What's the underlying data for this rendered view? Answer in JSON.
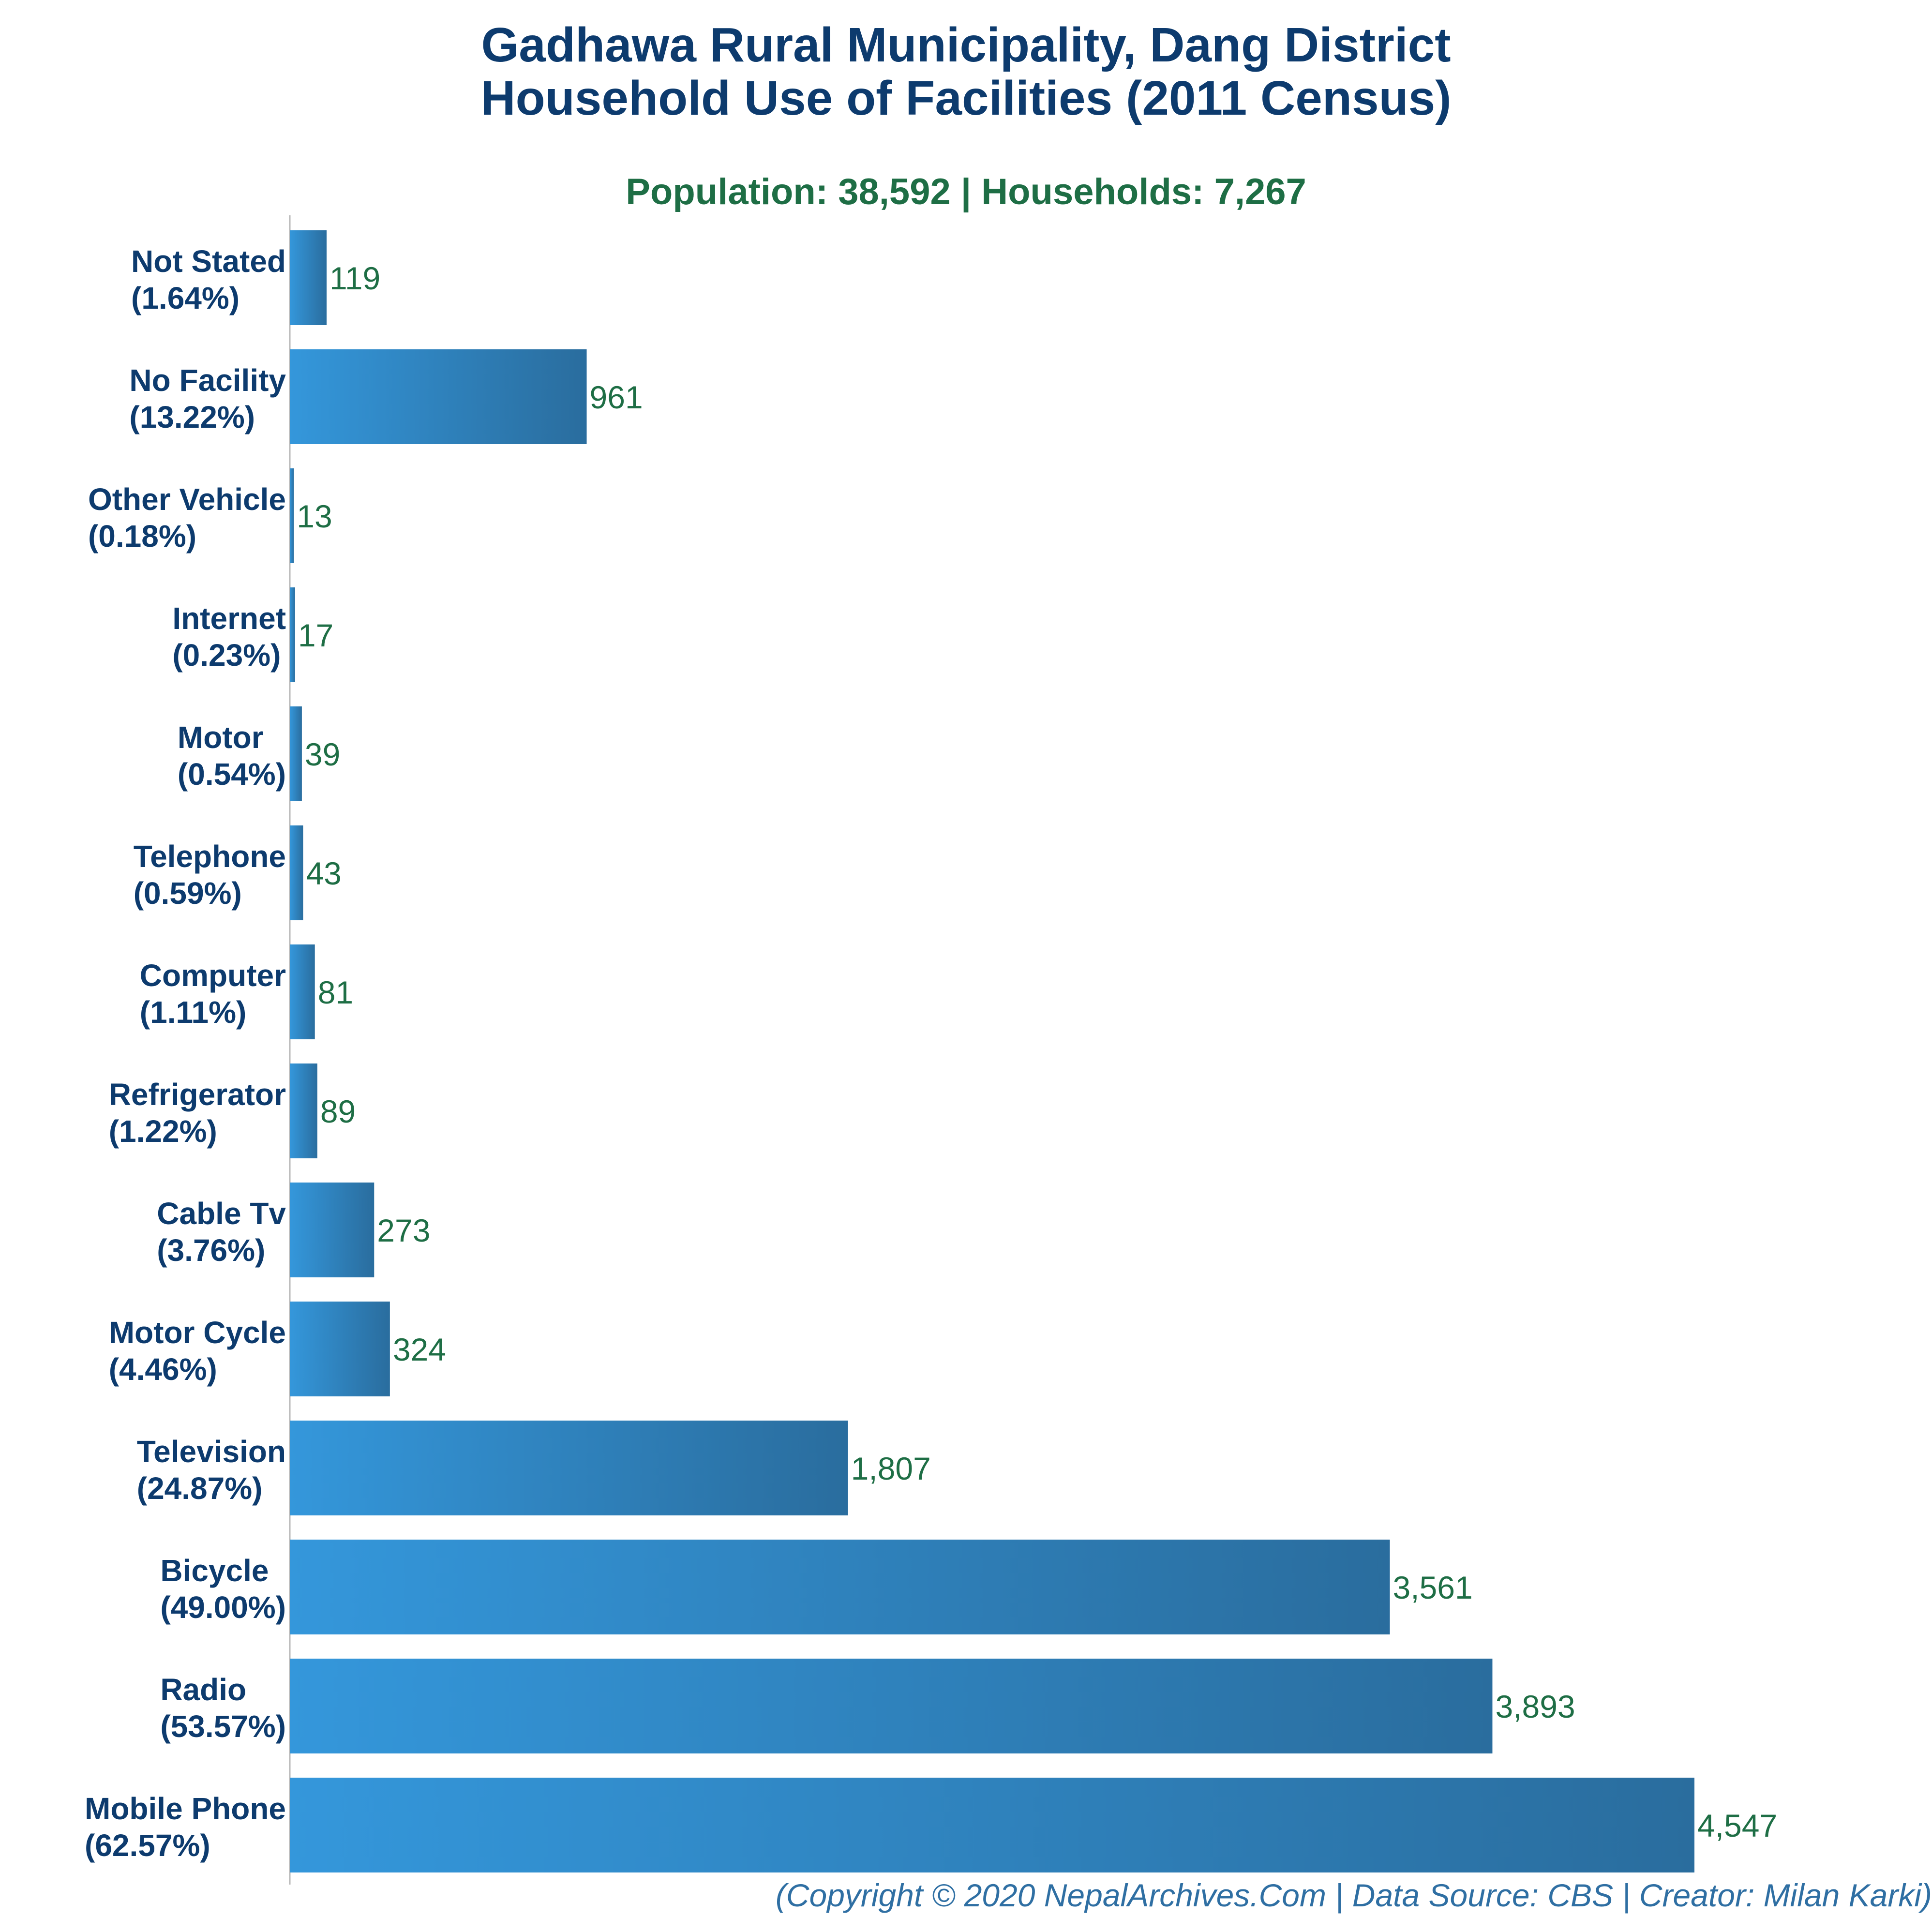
{
  "chart_data": {
    "type": "bar",
    "orientation": "horizontal",
    "title": [
      "Gadhawa Rural Municipality, Dang District",
      "Household Use of Facilities (2011 Census)"
    ],
    "subtitle": "Population: 38,592 | Households: 7,267",
    "credit": "(Copyright © 2020 NepalArchives.Com | Data Source: CBS | Creator: Milan Karki)",
    "categories": [
      "Not Stated",
      "No Facility",
      "Other Vehicle",
      "Internet",
      "Motor",
      "Telephone",
      "Computer",
      "Refrigerator",
      "Cable Tv",
      "Motor Cycle",
      "Television",
      "Bicycle",
      "Radio",
      "Mobile Phone"
    ],
    "percent_labels": [
      "(1.64%)",
      "(13.22%)",
      "(0.18%)",
      "(0.23%)",
      "(0.54%)",
      "(0.59%)",
      "(1.11%)",
      "(1.22%)",
      "(3.76%)",
      "(4.46%)",
      "(24.87%)",
      "(49.00%)",
      "(53.57%)",
      "(62.57%)"
    ],
    "values": [
      119,
      961,
      13,
      17,
      39,
      43,
      81,
      89,
      273,
      324,
      1807,
      3561,
      3893,
      4547
    ],
    "value_labels": [
      "119",
      "961",
      "13",
      "17",
      "39",
      "43",
      "81",
      "89",
      "273",
      "324",
      "1,807",
      "3,561",
      "3,893",
      "4,547"
    ],
    "xlim": [
      0,
      4547
    ],
    "grid": false,
    "legend": "none",
    "colors": {
      "bar_start": "#3497db",
      "bar_end": "#2a6d9e",
      "title": "#0d3b6e",
      "category_label": "#0d3b6e",
      "value_label": "#1e6e45",
      "subtitle": "#1e6e45",
      "credit": "#2f6fa3",
      "axis": "#b8b8b8"
    }
  }
}
